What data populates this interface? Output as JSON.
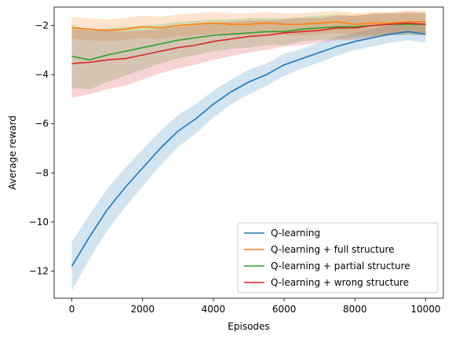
{
  "chart_data": {
    "type": "line",
    "title": "",
    "xlabel": "Episodes",
    "ylabel": "Average reward",
    "xlim": [
      -500,
      10500
    ],
    "ylim": [
      -13.1,
      -1.25
    ],
    "xticks": [
      0,
      2000,
      4000,
      6000,
      8000,
      10000
    ],
    "yticks": [
      -12,
      -10,
      -8,
      -6,
      -4,
      -2
    ],
    "xtick_labels": [
      "0",
      "2000",
      "4000",
      "6000",
      "8000",
      "10000"
    ],
    "ytick_labels": [
      "−12",
      "−10",
      "−8",
      "−6",
      "−4",
      "−2"
    ],
    "legend_position": "lower-right",
    "grid": false,
    "series": [
      {
        "name": "Q-learning",
        "color": "#1f77b4",
        "x": [
          0,
          500,
          1000,
          1500,
          2000,
          2500,
          3000,
          3500,
          4000,
          4500,
          5000,
          5500,
          6000,
          6500,
          7000,
          7500,
          8000,
          8500,
          9000,
          9500,
          10000
        ],
        "y": [
          -11.8,
          -10.6,
          -9.5,
          -8.6,
          -7.8,
          -7.0,
          -6.3,
          -5.8,
          -5.2,
          -4.7,
          -4.3,
          -4.0,
          -3.6,
          -3.35,
          -3.1,
          -2.85,
          -2.65,
          -2.5,
          -2.35,
          -2.25,
          -2.35
        ],
        "band": [
          1.0,
          0.9,
          0.85,
          0.8,
          0.75,
          0.7,
          0.65,
          0.6,
          0.55,
          0.5,
          0.5,
          0.45,
          0.45,
          0.4,
          0.4,
          0.38,
          0.35,
          0.35,
          0.35,
          0.35,
          0.35
        ]
      },
      {
        "name": "Q-learning + full structure",
        "color": "#ff7f0e",
        "x": [
          0,
          500,
          1000,
          1500,
          2000,
          2500,
          3000,
          3500,
          4000,
          4500,
          5000,
          5500,
          6000,
          6500,
          7000,
          7500,
          8000,
          8500,
          9000,
          9500,
          10000
        ],
        "y": [
          -2.1,
          -2.15,
          -2.2,
          -2.15,
          -2.05,
          -2.1,
          -2.0,
          -1.95,
          -1.9,
          -1.95,
          -1.95,
          -1.9,
          -1.95,
          -1.95,
          -1.9,
          -1.85,
          -1.95,
          -1.9,
          -1.9,
          -1.85,
          -1.85
        ],
        "band": [
          0.45,
          0.45,
          0.45,
          0.45,
          0.45,
          0.45,
          0.45,
          0.45,
          0.45,
          0.45,
          0.45,
          0.45,
          0.45,
          0.45,
          0.45,
          0.45,
          0.45,
          0.45,
          0.45,
          0.45,
          0.45
        ]
      },
      {
        "name": "Q-learning + partial structure",
        "color": "#2ca02c",
        "x": [
          0,
          500,
          1000,
          1500,
          2000,
          2500,
          3000,
          3500,
          4000,
          4500,
          5000,
          5500,
          6000,
          6500,
          7000,
          7500,
          8000,
          8500,
          9000,
          9500,
          10000
        ],
        "y": [
          -3.25,
          -3.4,
          -3.2,
          -3.05,
          -2.9,
          -2.75,
          -2.6,
          -2.5,
          -2.4,
          -2.35,
          -2.3,
          -2.25,
          -2.25,
          -2.15,
          -2.1,
          -2.05,
          -2.05,
          -2.0,
          -1.95,
          -1.95,
          -1.95
        ],
        "band": [
          1.3,
          1.2,
          1.1,
          1.0,
          0.9,
          0.8,
          0.75,
          0.7,
          0.65,
          0.6,
          0.6,
          0.55,
          0.55,
          0.5,
          0.5,
          0.5,
          0.45,
          0.45,
          0.45,
          0.45,
          0.45
        ]
      },
      {
        "name": "Q-learning + wrong structure",
        "color": "#d62728",
        "x": [
          0,
          500,
          1000,
          1500,
          2000,
          2500,
          3000,
          3500,
          4000,
          4500,
          5000,
          5500,
          6000,
          6500,
          7000,
          7500,
          8000,
          8500,
          9000,
          9500,
          10000
        ],
        "y": [
          -3.55,
          -3.5,
          -3.4,
          -3.35,
          -3.2,
          -3.05,
          -2.9,
          -2.8,
          -2.65,
          -2.55,
          -2.45,
          -2.4,
          -2.3,
          -2.25,
          -2.2,
          -2.1,
          -2.1,
          -2.0,
          -1.95,
          -1.9,
          -1.95
        ],
        "band": [
          1.4,
          1.3,
          1.2,
          1.1,
          1.0,
          0.9,
          0.85,
          0.8,
          0.75,
          0.7,
          0.65,
          0.6,
          0.55,
          0.55,
          0.5,
          0.5,
          0.5,
          0.5,
          0.45,
          0.45,
          0.45
        ]
      }
    ]
  }
}
